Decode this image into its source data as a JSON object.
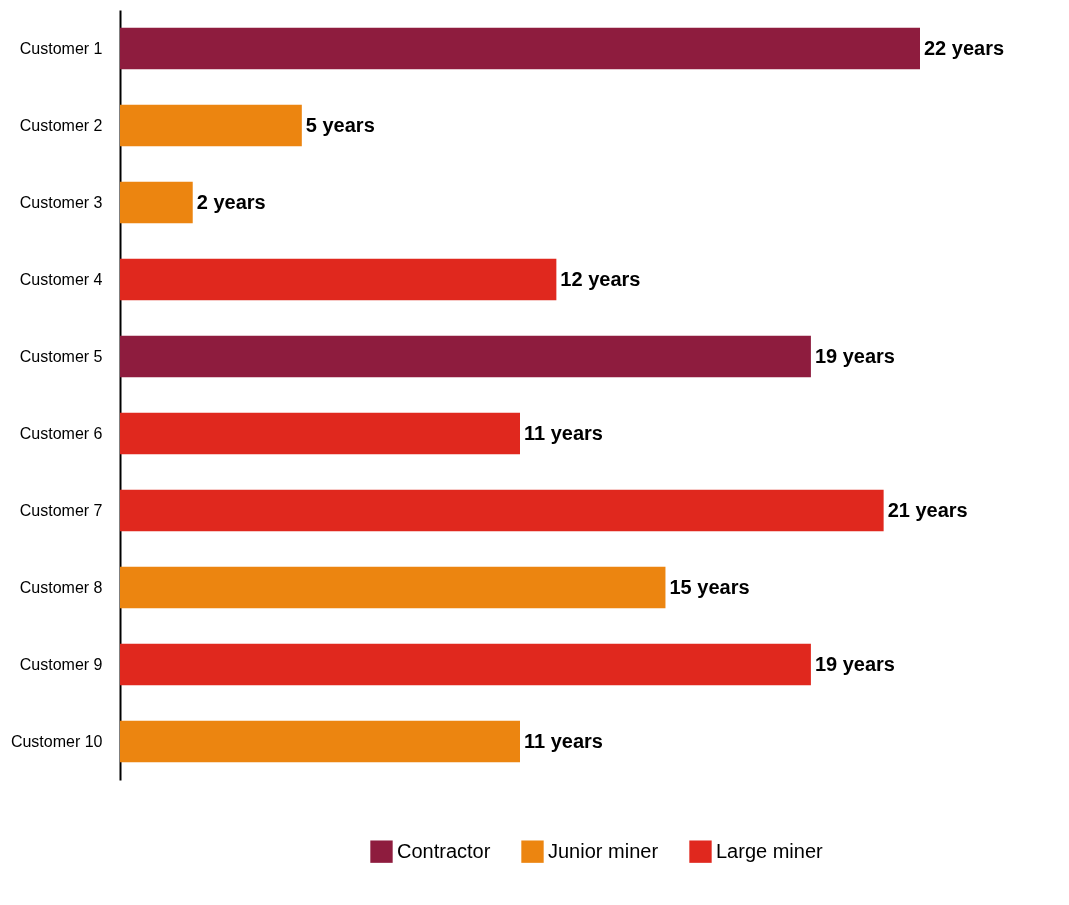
{
  "chart_data": {
    "type": "bar",
    "orientation": "horizontal",
    "legend": "bottom",
    "tick_labels": "y",
    "categories": [
      "Customer 1",
      "Customer 2",
      "Customer 3",
      "Customer 4",
      "Customer 5",
      "Customer 6",
      "Customer 7",
      "Customer 8",
      "Customer 9",
      "Customer 10"
    ],
    "series": [
      {
        "name": "Contractor",
        "color": "#8e1c3e",
        "values": [
          22,
          null,
          null,
          null,
          19,
          null,
          null,
          null,
          null,
          null
        ],
        "value_labels": [
          "22 years",
          null,
          null,
          null,
          "19 years",
          null,
          null,
          null,
          null,
          null
        ]
      },
      {
        "name": "Junior miner",
        "color": "#ec8510",
        "values": [
          null,
          5,
          2,
          null,
          null,
          null,
          null,
          15,
          null,
          11
        ],
        "value_labels": [
          null,
          "5 years",
          "2 years",
          null,
          null,
          null,
          null,
          "15 years",
          null,
          "11 years"
        ]
      },
      {
        "name": "Large miner",
        "color": "#e0281e",
        "values": [
          null,
          null,
          null,
          12,
          null,
          11,
          21,
          null,
          19,
          null
        ],
        "value_labels": [
          null,
          null,
          null,
          "12 years",
          null,
          "11 years",
          "21 years",
          null,
          "19 years",
          null
        ]
      }
    ]
  }
}
